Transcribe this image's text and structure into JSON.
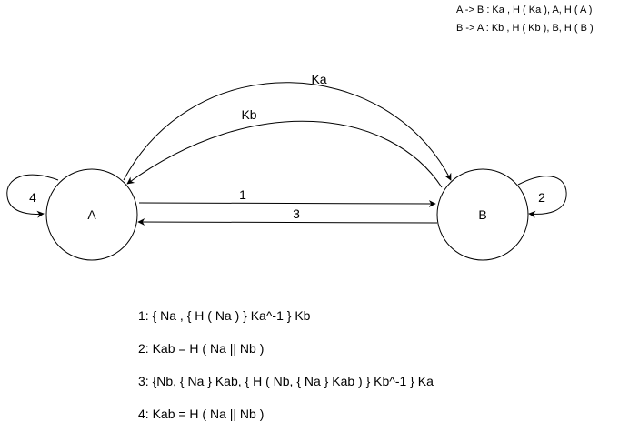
{
  "header_notes": [
    "A -> B : Ka , H ( Ka ), A, H ( A )",
    "B -> A : Kb , H ( Kb ), B, H ( B )"
  ],
  "nodes": {
    "a": {
      "label": "A"
    },
    "b": {
      "label": "B"
    }
  },
  "edges": {
    "ka_curve": {
      "label": "Ka"
    },
    "kb_curve": {
      "label": "Kb"
    },
    "a_to_b": {
      "label": "1"
    },
    "b_to_a": {
      "label": "3"
    },
    "loop_a": {
      "label": "4"
    },
    "loop_b": {
      "label": "2"
    }
  },
  "steps": [
    "1: { Na , { H ( Na ) } Ka^-1 } Kb",
    "2: Kab = H ( Na || Nb )",
    "3: {Nb, { Na } Kab, { H ( Nb, { Na } Kab ) } Kb^-1 } Ka",
    "4: Kab = H ( Na || Nb )"
  ],
  "colors": {
    "stroke": "#000000",
    "text": "#000000",
    "background": "#ffffff"
  }
}
